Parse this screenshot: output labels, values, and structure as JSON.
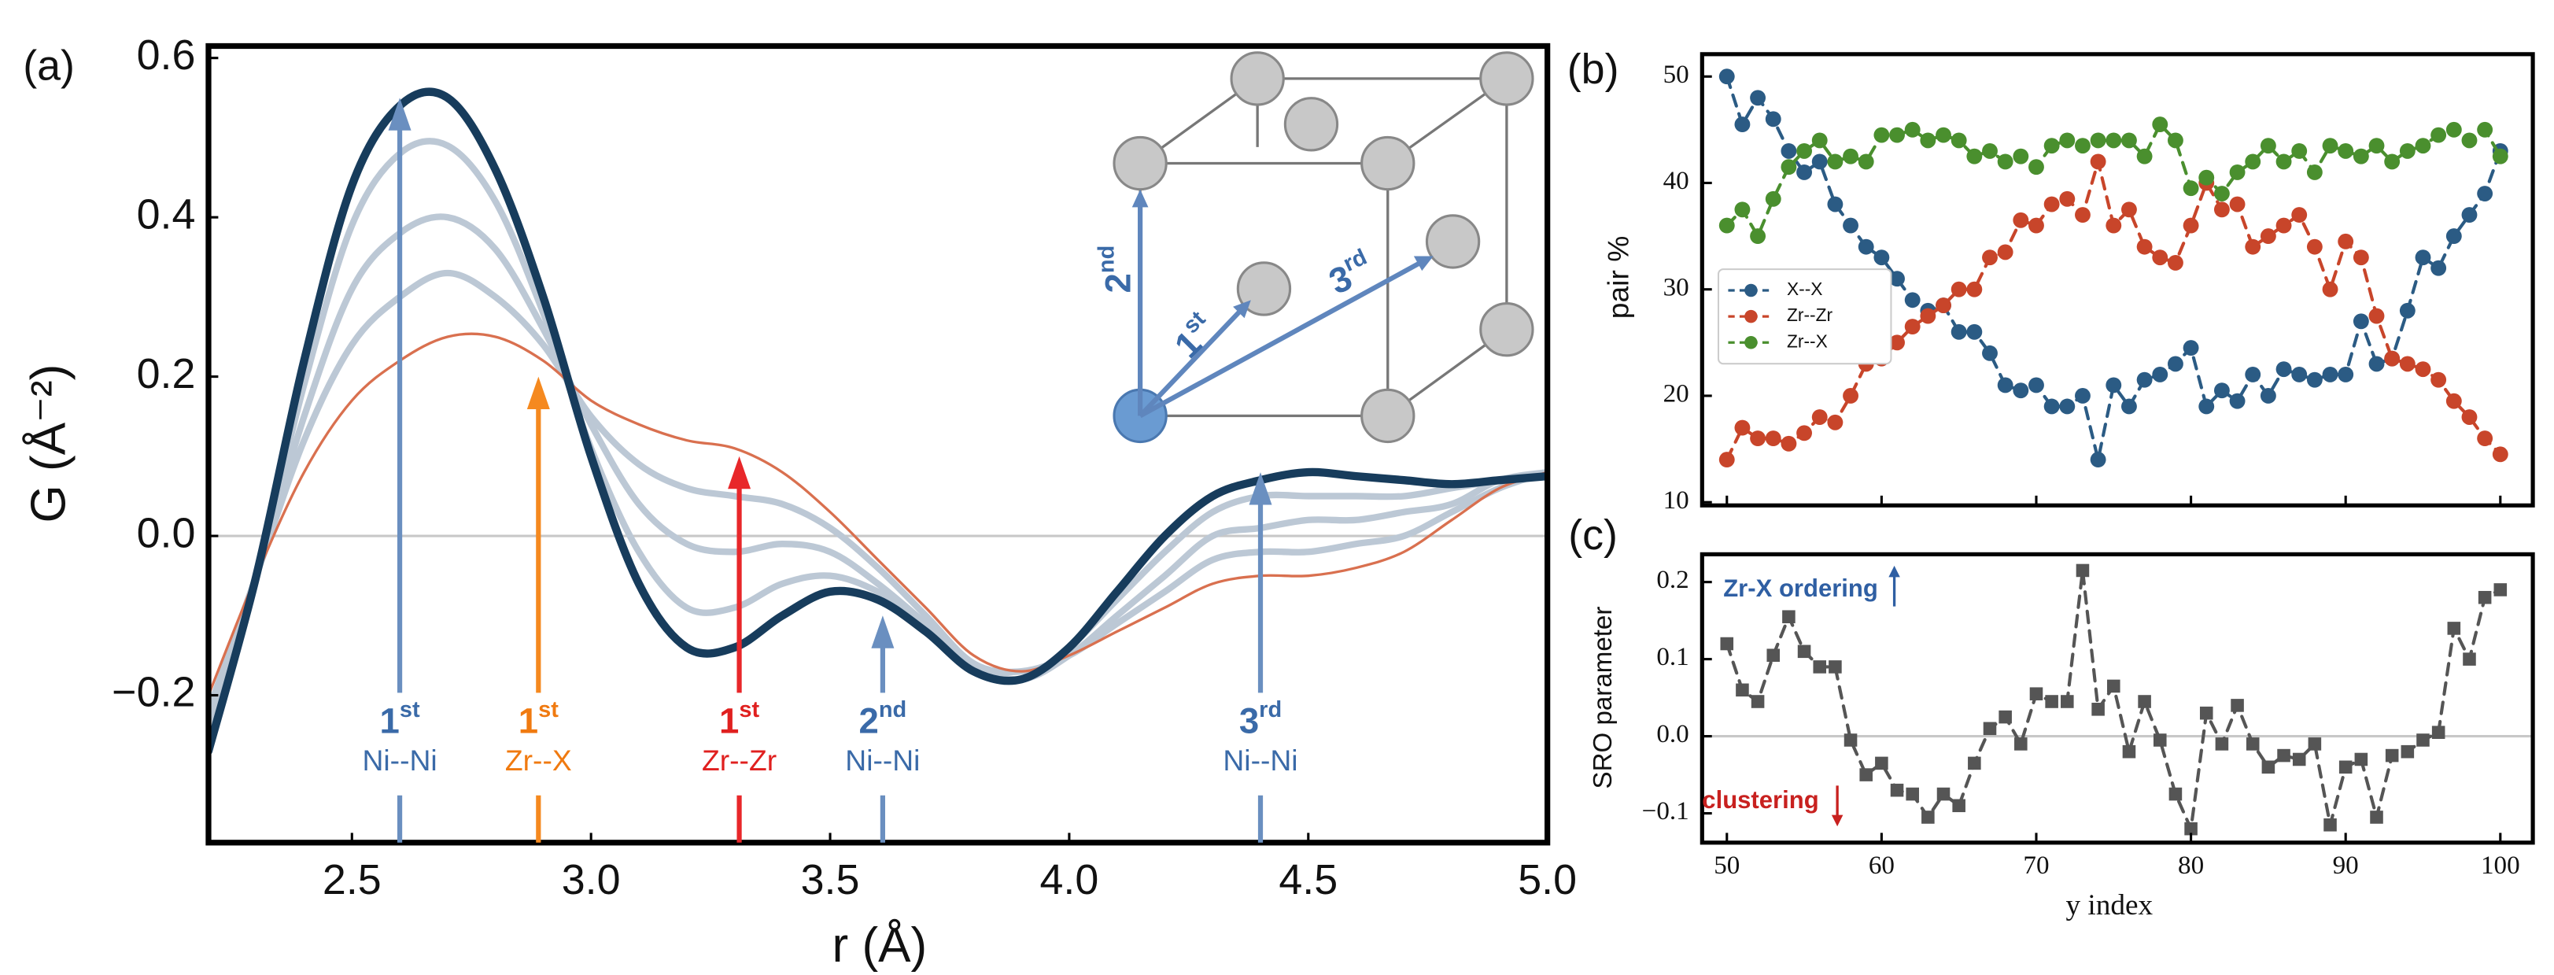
{
  "chart_data": [
    {
      "type": "line",
      "panel": "(a)",
      "xlabel": "r (Å)",
      "ylabel": "G (Å⁻²)",
      "smooth": true,
      "xlim": [
        2.2,
        5.0
      ],
      "ylim": [
        -0.385,
        0.615
      ],
      "xticks": [
        2.5,
        {
          "value": 3,
          "label": "3.0"
        },
        3.5,
        {
          "value": 4,
          "label": "4.0"
        },
        4.5,
        {
          "value": 5,
          "label": "5.0"
        }
      ],
      "yticks": [
        {
          "value": -0.2,
          "label": "−0.2"
        },
        {
          "value": 0,
          "label": "0.0"
        },
        0.2,
        0.4,
        0.6
      ],
      "zero_line": 0,
      "x": [
        2.2,
        2.3,
        2.4,
        2.5,
        2.6,
        2.7,
        2.8,
        2.9,
        3.0,
        3.1,
        3.2,
        3.3,
        3.4,
        3.5,
        3.6,
        3.7,
        3.8,
        3.9,
        4.0,
        4.1,
        4.2,
        4.3,
        4.4,
        4.5,
        4.6,
        4.7,
        4.8,
        4.9,
        5.0
      ],
      "series": [
        {
          "color": "#bcc8d5",
          "linewidth": 4,
          "values": [
            -0.22,
            -0.05,
            0.12,
            0.24,
            0.3,
            0.33,
            0.3,
            0.24,
            0.15,
            0.09,
            0.06,
            0.05,
            0.04,
            0.01,
            -0.04,
            -0.1,
            -0.16,
            -0.17,
            -0.15,
            -0.11,
            -0.07,
            -0.03,
            -0.02,
            -0.02,
            -0.01,
            0.0,
            0.03,
            0.06,
            0.08
          ]
        },
        {
          "color": "#bcc8d5",
          "linewidth": 4,
          "values": [
            -0.24,
            -0.05,
            0.15,
            0.31,
            0.38,
            0.4,
            0.36,
            0.26,
            0.14,
            0.04,
            -0.01,
            -0.02,
            -0.01,
            -0.02,
            -0.06,
            -0.11,
            -0.16,
            -0.18,
            -0.15,
            -0.1,
            -0.05,
            0.0,
            0.01,
            0.02,
            0.02,
            0.03,
            0.04,
            0.07,
            0.08
          ]
        },
        {
          "color": "#bcc8d5",
          "linewidth": 4,
          "values": [
            -0.26,
            -0.05,
            0.19,
            0.39,
            0.48,
            0.49,
            0.42,
            0.28,
            0.11,
            -0.02,
            -0.09,
            -0.09,
            -0.06,
            -0.05,
            -0.07,
            -0.11,
            -0.17,
            -0.18,
            -0.14,
            -0.08,
            -0.02,
            0.03,
            0.05,
            0.05,
            0.05,
            0.05,
            0.06,
            0.07,
            0.08
          ]
        },
        {
          "color": "#d9704f",
          "linewidth": 1.6,
          "values": [
            -0.2,
            -0.05,
            0.08,
            0.17,
            0.22,
            0.25,
            0.25,
            0.22,
            0.17,
            0.14,
            0.12,
            0.11,
            0.08,
            0.03,
            -0.03,
            -0.09,
            -0.15,
            -0.17,
            -0.15,
            -0.12,
            -0.09,
            -0.06,
            -0.05,
            -0.05,
            -0.04,
            -0.02,
            0.02,
            0.06,
            0.08
          ]
        },
        {
          "color": "#173c5c",
          "linewidth": 5,
          "values": [
            -0.27,
            -0.05,
            0.22,
            0.44,
            0.54,
            0.55,
            0.46,
            0.3,
            0.1,
            -0.06,
            -0.14,
            -0.14,
            -0.1,
            -0.07,
            -0.08,
            -0.12,
            -0.17,
            -0.18,
            -0.14,
            -0.07,
            0.0,
            0.05,
            0.07,
            0.08,
            0.075,
            0.07,
            0.065,
            0.07,
            0.075
          ]
        }
      ],
      "annotations": [
        {
          "ordinal": "1",
          "suffix": "st",
          "label": "Ni--Ni",
          "x": 2.6,
          "y": 0.55,
          "color": "#6a8fc0",
          "text_color": "#3a6aa8"
        },
        {
          "ordinal": "1",
          "suffix": "st",
          "label": "Zr--X",
          "x": 2.89,
          "y": 0.2,
          "color": "#f5891f",
          "text_color": "#f07a10"
        },
        {
          "ordinal": "1",
          "suffix": "st",
          "label": "Zr--Zr",
          "x": 3.31,
          "y": 0.1,
          "color": "#e8272a",
          "text_color": "#e0201f"
        },
        {
          "ordinal": "2",
          "suffix": "nd",
          "label": "Ni--Ni",
          "x": 3.61,
          "y": -0.1,
          "color": "#6a8fc0",
          "text_color": "#3a6aa8"
        },
        {
          "ordinal": "3",
          "suffix": "rd",
          "label": "Ni--Ni",
          "x": 4.4,
          "y": 0.08,
          "color": "#6a8fc0",
          "text_color": "#3a6aa8"
        }
      ],
      "inset_labels": [
        {
          "ordinal": "2",
          "suffix": "nd"
        },
        {
          "ordinal": "1",
          "suffix": "st"
        },
        {
          "ordinal": "3",
          "suffix": "rd"
        }
      ]
    },
    {
      "type": "line",
      "panel": "(b)",
      "ylabel": "pair %",
      "marker": "circle",
      "dashed": true,
      "legend": "center left",
      "xlim": [
        48.4,
        102.1
      ],
      "ylim": [
        9.7,
        52.1
      ],
      "yticks": [
        10,
        20,
        30,
        40,
        50
      ],
      "x": [
        50,
        51,
        52,
        53,
        54,
        55,
        56,
        57,
        58,
        59,
        60,
        61,
        62,
        63,
        64,
        65,
        66,
        67,
        68,
        69,
        70,
        71,
        72,
        73,
        74,
        75,
        76,
        77,
        78,
        79,
        80,
        81,
        82,
        83,
        84,
        85,
        86,
        87,
        88,
        89,
        90,
        91,
        92,
        93,
        94,
        95,
        96,
        97,
        98,
        99,
        100
      ],
      "series": [
        {
          "name": "X--X",
          "color": "#2b5b84",
          "values": [
            50,
            45.5,
            48,
            46,
            43,
            41,
            42,
            38,
            36,
            34,
            33,
            31,
            29,
            28,
            28.5,
            26,
            26,
            24,
            21,
            20.5,
            21,
            19,
            19,
            20,
            14,
            21,
            19,
            21.5,
            22,
            23,
            24.5,
            19,
            20.5,
            19.5,
            22,
            20,
            22.5,
            22,
            21.5,
            22,
            22,
            27,
            23,
            23.5,
            28,
            33,
            32,
            35,
            37,
            39,
            43
          ]
        },
        {
          "name": "Zr--Zr",
          "color": "#c8452a",
          "values": [
            14,
            17,
            16,
            16,
            15.5,
            16.5,
            18,
            17.5,
            20,
            23,
            23.5,
            25,
            26.5,
            27.5,
            28.5,
            30,
            30,
            33,
            33.5,
            36.5,
            36,
            38,
            38.5,
            37,
            42,
            36,
            37.5,
            34,
            33,
            32.5,
            36,
            40,
            37.5,
            38,
            34,
            35,
            36,
            37,
            34,
            30,
            34.5,
            33,
            27.5,
            23.5,
            23,
            22.5,
            21.5,
            19.5,
            18,
            16,
            14.5
          ]
        },
        {
          "name": "Zr--X",
          "color": "#4a8f2e",
          "values": [
            36,
            37.5,
            35,
            38.5,
            41.5,
            43,
            44,
            42,
            42.5,
            42,
            44.5,
            44.5,
            45,
            44,
            44.5,
            44,
            42.5,
            43,
            42,
            42.5,
            41.5,
            43.5,
            44,
            43.5,
            44,
            44,
            44,
            42.5,
            45.5,
            44,
            39.5,
            40.5,
            39,
            41,
            42,
            43.5,
            42,
            43,
            41,
            43.5,
            43,
            42.5,
            43.5,
            42,
            43,
            43.5,
            44.5,
            45,
            44,
            45,
            42.5
          ]
        }
      ]
    },
    {
      "type": "line",
      "panel": "(c)",
      "xlabel": "y index",
      "ylabel": "SRO parameter",
      "marker": "square",
      "dashed": true,
      "xlim": [
        48.4,
        102.1
      ],
      "ylim": [
        -0.138,
        0.236
      ],
      "xticks": [
        50,
        60,
        70,
        80,
        90,
        100
      ],
      "yticks": [
        {
          "value": -0.1,
          "label": "−0.1"
        },
        {
          "value": 0,
          "label": "0.0"
        },
        0.1,
        0.2
      ],
      "zero_line": 0,
      "x": [
        50,
        51,
        52,
        53,
        54,
        55,
        56,
        57,
        58,
        59,
        60,
        61,
        62,
        63,
        64,
        65,
        66,
        67,
        68,
        69,
        70,
        71,
        72,
        73,
        74,
        75,
        76,
        77,
        78,
        79,
        80,
        81,
        82,
        83,
        84,
        85,
        86,
        87,
        88,
        89,
        90,
        91,
        92,
        93,
        94,
        95,
        96,
        97,
        98,
        99,
        100
      ],
      "series": [
        {
          "color": "#555555",
          "values": [
            0.12,
            0.06,
            0.045,
            0.105,
            0.155,
            0.11,
            0.09,
            0.09,
            -0.005,
            -0.05,
            -0.035,
            -0.07,
            -0.075,
            -0.105,
            -0.075,
            -0.09,
            -0.035,
            0.01,
            0.025,
            -0.01,
            0.055,
            0.045,
            0.045,
            0.215,
            0.035,
            0.065,
            -0.02,
            0.045,
            -0.005,
            -0.075,
            -0.12,
            0.03,
            -0.01,
            0.04,
            -0.01,
            -0.04,
            -0.025,
            -0.03,
            -0.01,
            -0.115,
            -0.04,
            -0.03,
            -0.105,
            -0.025,
            -0.02,
            -0.005,
            0.005,
            0.14,
            0.1,
            0.18,
            0.19
          ]
        }
      ],
      "annotations": [
        {
          "text": "Zr-X ordering",
          "color": "#2f5fa3",
          "direction": "up"
        },
        {
          "text": "clustering",
          "color": "#c8211f",
          "direction": "down"
        }
      ]
    }
  ]
}
